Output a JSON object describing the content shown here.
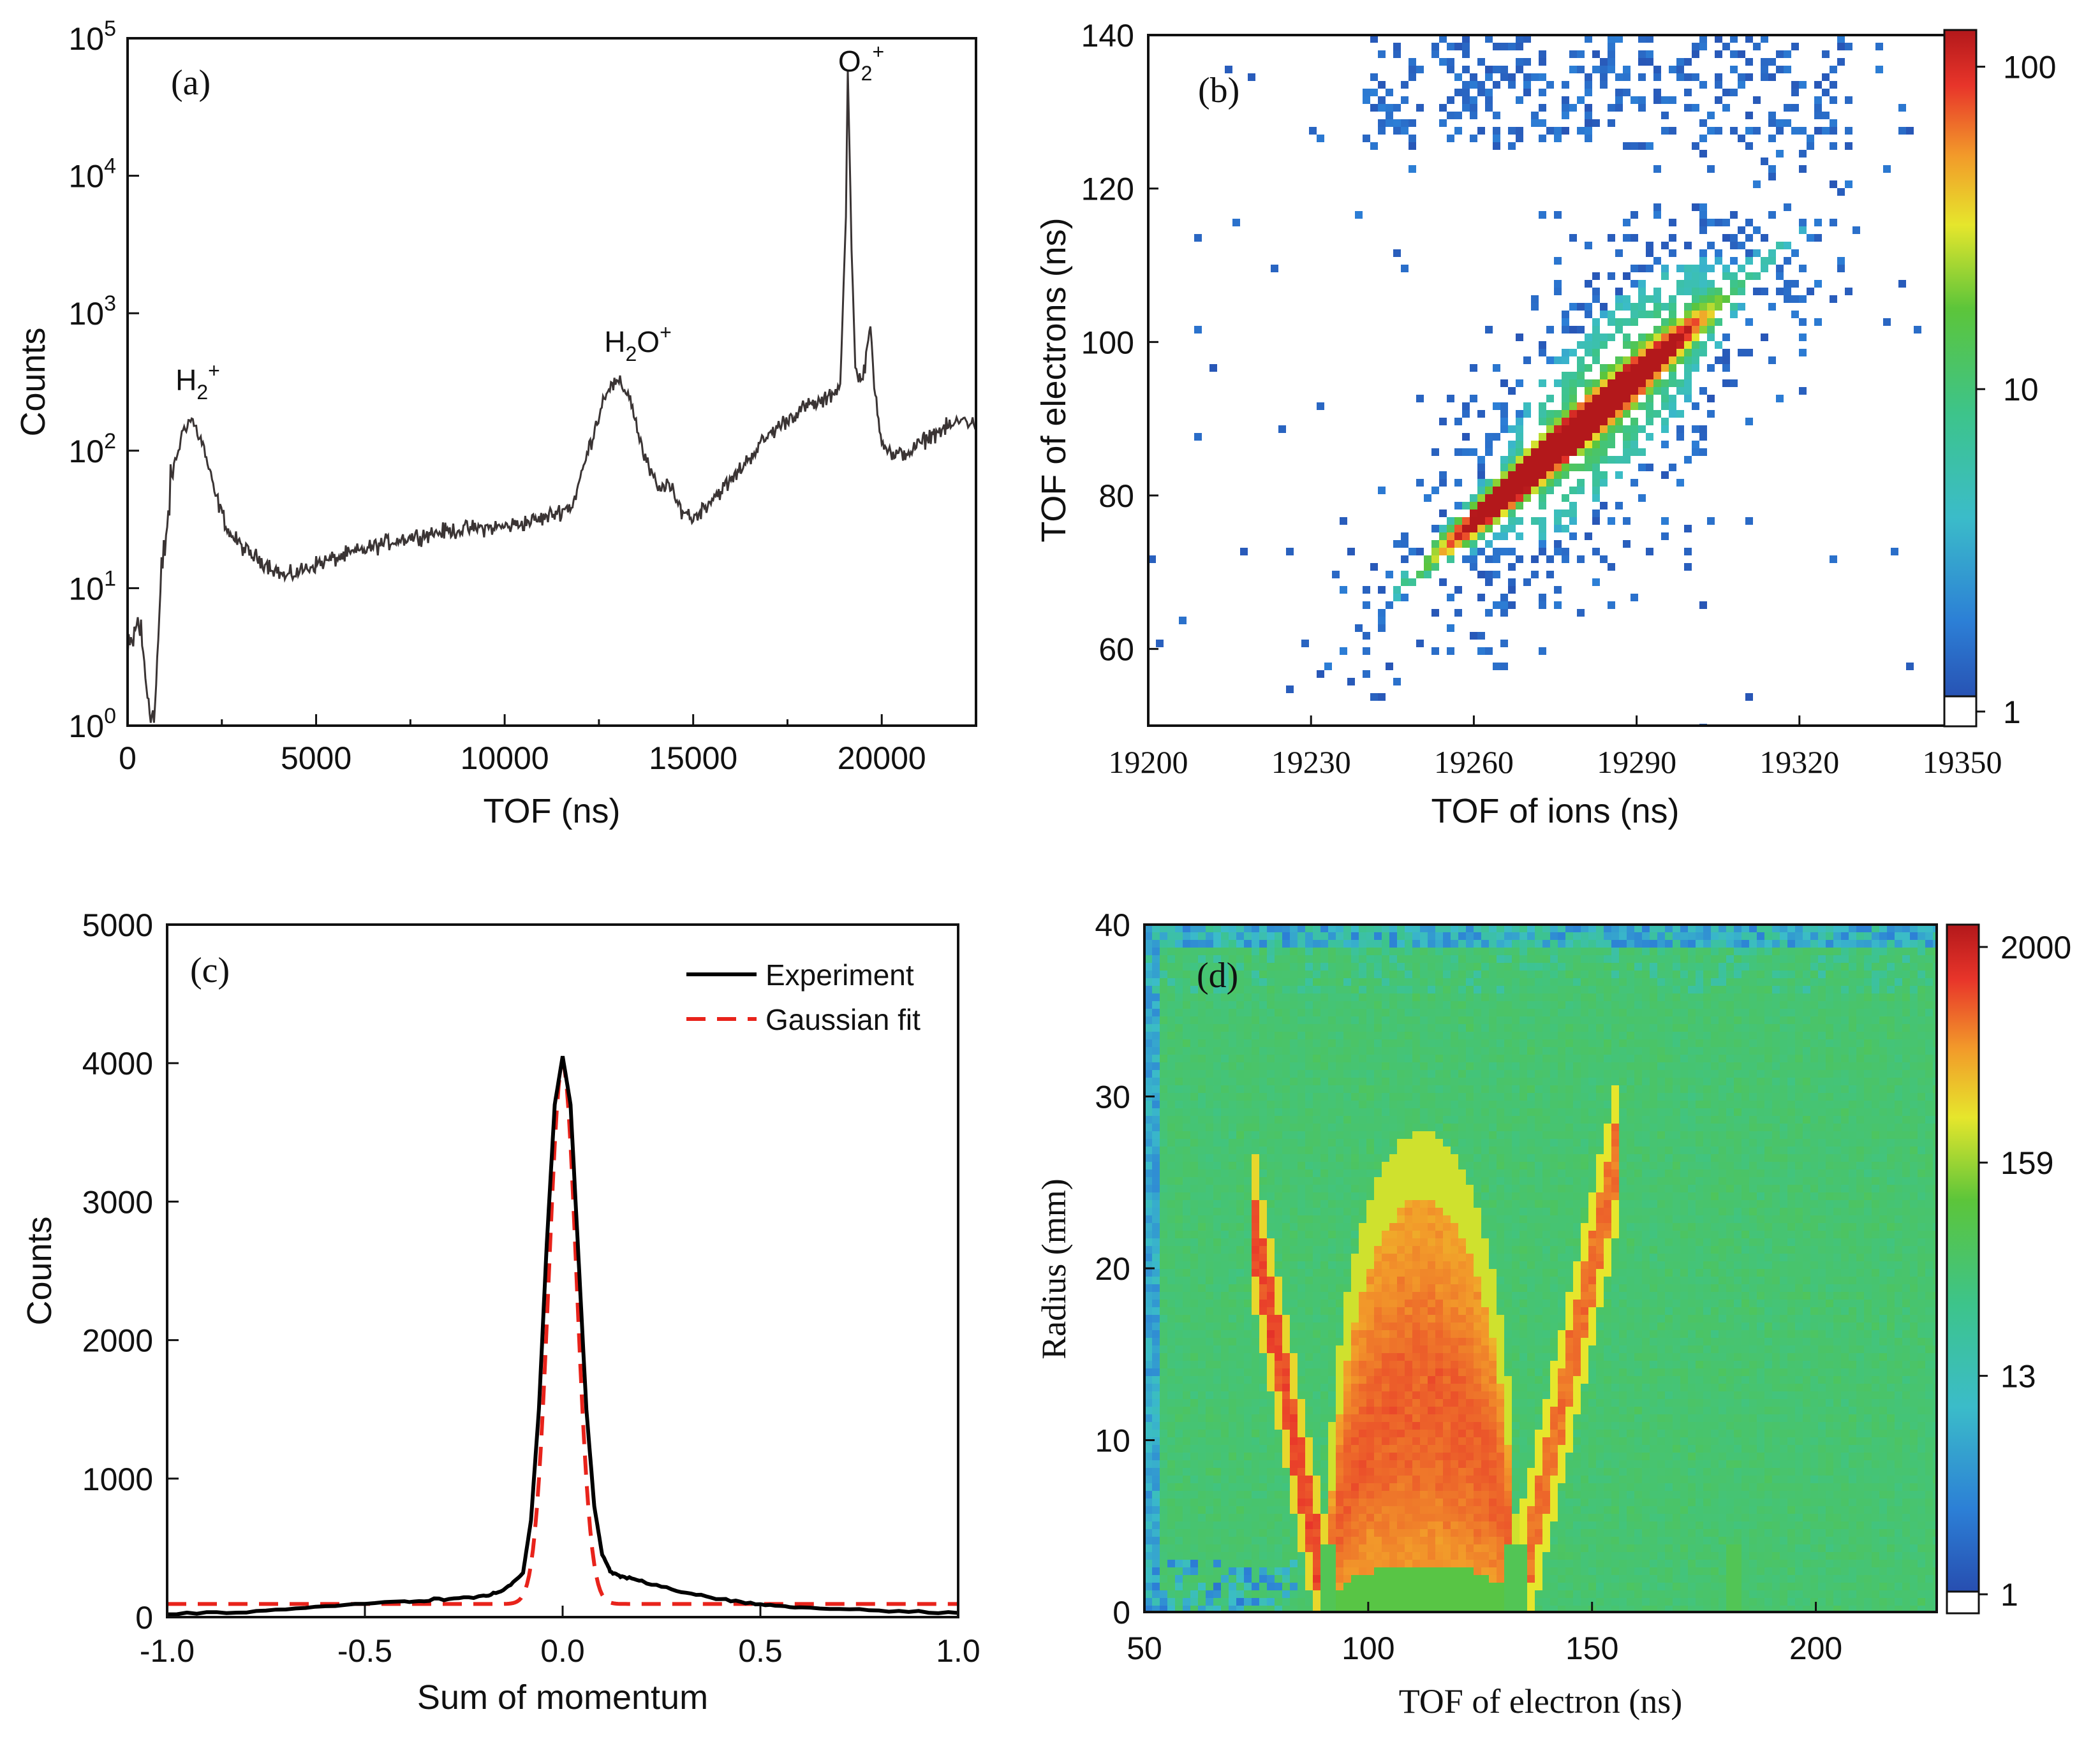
{
  "chart_data": [
    {
      "panel": "(a)",
      "type": "line",
      "xlabel": "TOF (ns)",
      "ylabel": "Counts",
      "yscale": "log",
      "xlim": [
        0,
        22500
      ],
      "ylim_exponent": [
        0,
        5
      ],
      "xticks": [
        "0",
        "5000",
        "10000",
        "15000",
        "20000"
      ],
      "xtick_values": [
        0,
        5000,
        10000,
        15000,
        20000
      ],
      "yticks": [
        {
          "base": "10",
          "exp": "0"
        },
        {
          "base": "10",
          "exp": "1"
        },
        {
          "base": "10",
          "exp": "2"
        },
        {
          "base": "10",
          "exp": "3"
        },
        {
          "base": "10",
          "exp": "4"
        },
        {
          "base": "10",
          "exp": "5"
        }
      ],
      "peaks": [
        {
          "base": "H",
          "sub": "2",
          "sup": "+",
          "tof": 1700,
          "counts": 170
        },
        {
          "base": "H",
          "sub": "2",
          "tail": "O",
          "sup": "+",
          "tof": 13000,
          "counts": 310
        },
        {
          "base": "O",
          "sub": "2",
          "sup": "+",
          "tof": 19100,
          "counts": 60000
        }
      ],
      "series_points": [
        [
          0,
          3
        ],
        [
          300,
          6
        ],
        [
          500,
          2
        ],
        [
          700,
          1
        ],
        [
          900,
          12
        ],
        [
          1200,
          70
        ],
        [
          1500,
          150
        ],
        [
          1700,
          170
        ],
        [
          2000,
          110
        ],
        [
          2300,
          50
        ],
        [
          2700,
          25
        ],
        [
          3200,
          18
        ],
        [
          3700,
          15
        ],
        [
          4200,
          12
        ],
        [
          5000,
          15
        ],
        [
          6000,
          18
        ],
        [
          7000,
          22
        ],
        [
          8000,
          25
        ],
        [
          9000,
          27
        ],
        [
          10000,
          28
        ],
        [
          11000,
          32
        ],
        [
          11800,
          40
        ],
        [
          12300,
          120
        ],
        [
          12700,
          280
        ],
        [
          13000,
          310
        ],
        [
          13300,
          260
        ],
        [
          13700,
          90
        ],
        [
          14100,
          50
        ],
        [
          14300,
          60
        ],
        [
          14600,
          40
        ],
        [
          15000,
          32
        ],
        [
          15500,
          45
        ],
        [
          16000,
          60
        ],
        [
          16500,
          90
        ],
        [
          17000,
          130
        ],
        [
          17500,
          170
        ],
        [
          18000,
          210
        ],
        [
          18500,
          230
        ],
        [
          18900,
          300
        ],
        [
          19050,
          5000
        ],
        [
          19100,
          60000
        ],
        [
          19200,
          3000
        ],
        [
          19300,
          400
        ],
        [
          19500,
          320
        ],
        [
          19700,
          800
        ],
        [
          19800,
          300
        ],
        [
          20000,
          120
        ],
        [
          20300,
          90
        ],
        [
          20800,
          100
        ],
        [
          21300,
          130
        ],
        [
          21800,
          150
        ],
        [
          22200,
          170
        ],
        [
          22500,
          150
        ]
      ]
    },
    {
      "panel": "(b)",
      "type": "heatmap",
      "xlabel": "TOF of ions (ns)",
      "ylabel": "TOF of electrons (ns)",
      "xlim": [
        19200,
        19350
      ],
      "ylim": [
        50,
        140
      ],
      "xticks": [
        "19200",
        "19230",
        "19260",
        "19290",
        "19320",
        "19350"
      ],
      "xtick_values": [
        19200,
        19230,
        19260,
        19290,
        19320,
        19350
      ],
      "yticks": [
        "60",
        "80",
        "100",
        "120",
        "140"
      ],
      "ytick_values": [
        60,
        80,
        100,
        120,
        140
      ],
      "ridge": {
        "x_start": 19240,
        "y_start": 64,
        "x_end": 19310,
        "y_end": 108
      },
      "colorbar": {
        "scale": "log",
        "ticks": [
          "1",
          "10",
          "100"
        ],
        "tick_values": [
          1,
          10,
          100
        ],
        "range": [
          0.9,
          130
        ]
      }
    },
    {
      "panel": "(c)",
      "type": "line",
      "xlabel": "Sum of momentum",
      "ylabel": "Counts",
      "xlim": [
        -1.0,
        1.0
      ],
      "ylim": [
        0,
        5000
      ],
      "xticks": [
        "-1.0",
        "-0.5",
        "0.0",
        "0.5",
        "1.0"
      ],
      "xtick_values": [
        -1.0,
        -0.5,
        0.0,
        0.5,
        1.0
      ],
      "yticks": [
        "0",
        "1000",
        "2000",
        "3000",
        "4000",
        "5000"
      ],
      "ytick_values": [
        0,
        1000,
        2000,
        3000,
        4000,
        5000
      ],
      "legend_position": "top-right",
      "series": [
        {
          "name": "Experiment",
          "color": "#000000",
          "style": "solid",
          "x": [
            -1.0,
            -0.8,
            -0.6,
            -0.4,
            -0.3,
            -0.2,
            -0.15,
            -0.1,
            -0.08,
            -0.06,
            -0.04,
            -0.02,
            0.0,
            0.02,
            0.04,
            0.06,
            0.08,
            0.1,
            0.12,
            0.15,
            0.2,
            0.3,
            0.4,
            0.5,
            0.6,
            0.8,
            1.0
          ],
          "y": [
            20,
            40,
            80,
            110,
            130,
            150,
            190,
            320,
            700,
            1500,
            2700,
            3700,
            4050,
            3700,
            2600,
            1500,
            800,
            450,
            330,
            290,
            260,
            180,
            130,
            90,
            70,
            50,
            30
          ]
        },
        {
          "name": "Gaussian fit",
          "color": "#e8231b",
          "style": "dashed",
          "baseline": 95,
          "amplitude": 3900,
          "center": 0.0,
          "sigma": 0.035
        }
      ]
    },
    {
      "panel": "(d)",
      "type": "heatmap",
      "xlabel": "TOF of electron (ns)",
      "ylabel": "Radius (mm)",
      "xlim": [
        50,
        227
      ],
      "ylim": [
        0,
        40
      ],
      "xticks": [
        "50",
        "100",
        "150",
        "200"
      ],
      "xtick_values": [
        50,
        100,
        150,
        200
      ],
      "yticks": [
        "0",
        "10",
        "20",
        "30",
        "40"
      ],
      "ytick_values": [
        0,
        10,
        20,
        30,
        40
      ],
      "nodes_ns": [
        91,
        133,
        182
      ],
      "colorbar": {
        "scale": "log",
        "ticks": [
          "1",
          "13",
          "159",
          "2000"
        ],
        "tick_values": [
          1,
          13,
          159,
          2000
        ],
        "range": [
          0.8,
          2600
        ]
      }
    }
  ],
  "colors": {
    "axis": "#111111",
    "trace_a": "#3a3434",
    "fit_red": "#e8231b",
    "heatmap_low": "#2740a8",
    "heatmap_high": "#b3181b"
  }
}
